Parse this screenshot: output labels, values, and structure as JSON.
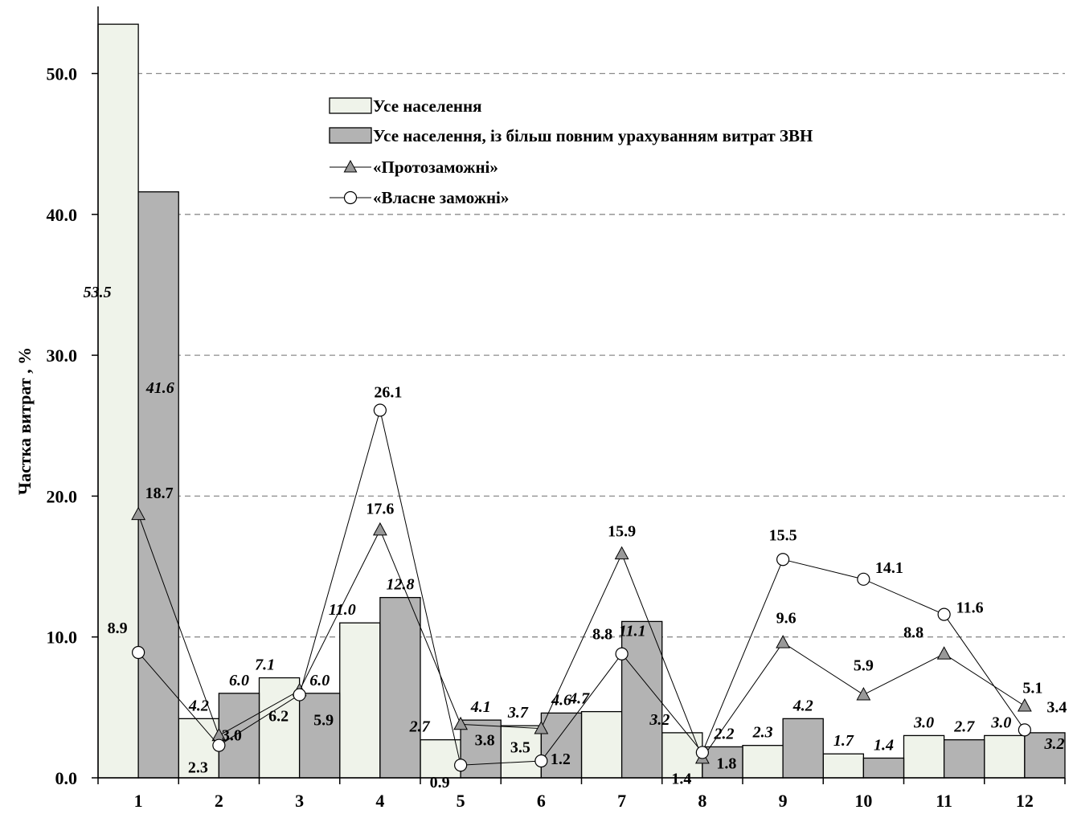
{
  "chart_data": {
    "type": "bar",
    "ylabel": "Частка витрат , %",
    "xlabel": "",
    "ylim": [
      0,
      54
    ],
    "yticks": [
      "0.0",
      "10.0",
      "20.0",
      "30.0",
      "40.0",
      "50.0"
    ],
    "categories": [
      "1",
      "2",
      "3",
      "4",
      "5",
      "6",
      "7",
      "8",
      "9",
      "10",
      "11",
      "12"
    ],
    "grid": "horizontal dashed",
    "legend_position": "top-center",
    "bar_series": [
      {
        "name": "Усе населення",
        "color": "#eff3ea",
        "values": [
          53.5,
          4.2,
          7.1,
          11.0,
          2.7,
          3.7,
          4.7,
          3.2,
          2.3,
          1.7,
          3.0,
          3.0
        ],
        "labels": [
          "53.5",
          "4.2",
          "7.1",
          "11.0",
          "2.7",
          "3.7",
          "4.7",
          "3.2",
          "2.3",
          "1.7",
          "3.0",
          "3.0"
        ]
      },
      {
        "name": "Усе населення, із більш повним урахуванням витрат ЗВН",
        "color": "#b3b3b3",
        "values": [
          41.6,
          6.0,
          6.0,
          12.8,
          4.1,
          4.6,
          11.1,
          2.2,
          4.2,
          1.4,
          2.7,
          3.2
        ],
        "labels": [
          "41.6",
          "6.0",
          "6.0",
          "12.8",
          "4.1",
          "4.6",
          "11.1",
          "2.2",
          "4.2",
          "1.4",
          "2.7",
          "3.2"
        ]
      }
    ],
    "line_series": [
      {
        "name": "«Протозаможні»",
        "marker": "triangle",
        "color": "#999999",
        "values": [
          18.7,
          3.0,
          6.2,
          17.6,
          3.8,
          3.5,
          15.9,
          1.4,
          9.6,
          5.9,
          8.8,
          5.1
        ],
        "labels": [
          "18.7",
          "3.0",
          "6.2",
          "17.6",
          "3.8",
          "3.5",
          "15.9",
          "1.4",
          "9.6",
          "5.9",
          "8.8",
          "5.1"
        ]
      },
      {
        "name": "«Власне заможні»",
        "marker": "circle",
        "color": "#ffffff",
        "values": [
          8.9,
          2.3,
          5.9,
          26.1,
          0.9,
          1.2,
          8.8,
          1.8,
          15.5,
          14.1,
          11.6,
          3.4
        ],
        "labels": [
          "8.9",
          "2.3",
          "5.9",
          "26.1",
          "0.9",
          "1.2",
          "8.8",
          "1.8",
          "15.5",
          "14.1",
          "11.6",
          "3.4"
        ]
      }
    ]
  }
}
